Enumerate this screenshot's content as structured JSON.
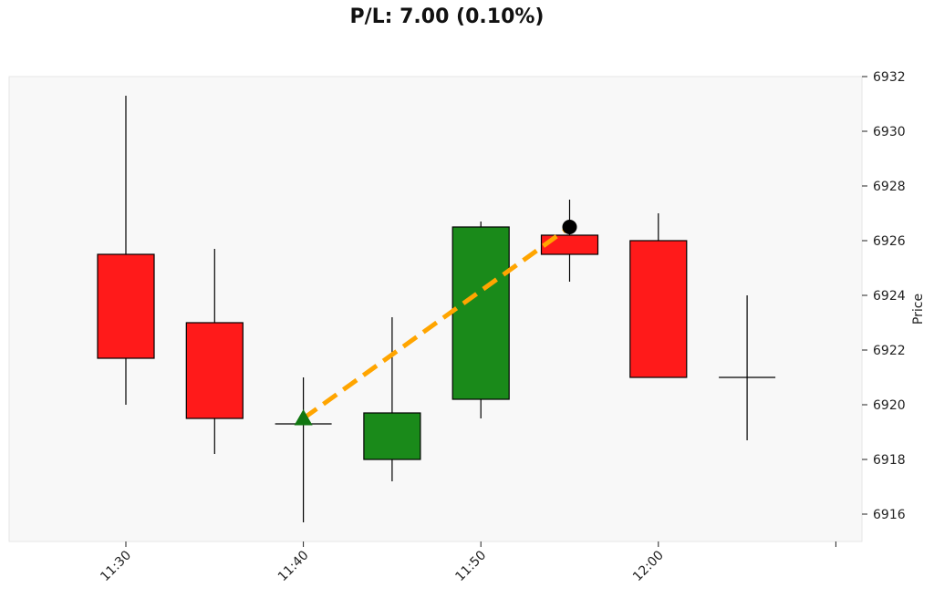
{
  "chart_data": {
    "type": "candlestick",
    "title": "P/L: 7.00 (0.10%)",
    "ylabel": "Price",
    "ylim": [
      6915,
      6932
    ],
    "yticks": [
      6916,
      6918,
      6920,
      6922,
      6924,
      6926,
      6928,
      6930,
      6932
    ],
    "xtick_labels": [
      "11:30",
      "11:40",
      "11:50",
      "12:00"
    ],
    "grid": false,
    "candles": [
      {
        "time": "11:30",
        "open": 6925.5,
        "high": 6931.3,
        "low": 6920.0,
        "close": 6921.7
      },
      {
        "time": "11:35",
        "open": 6923.0,
        "high": 6925.7,
        "low": 6918.2,
        "close": 6919.5
      },
      {
        "time": "11:40",
        "open": 6919.3,
        "high": 6921.0,
        "low": 6915.7,
        "close": 6919.3
      },
      {
        "time": "11:45",
        "open": 6918.0,
        "high": 6923.2,
        "low": 6917.2,
        "close": 6919.7
      },
      {
        "time": "11:50",
        "open": 6920.2,
        "high": 6926.7,
        "low": 6919.5,
        "close": 6926.5
      },
      {
        "time": "11:55",
        "open": 6926.2,
        "high": 6927.5,
        "low": 6924.5,
        "close": 6925.5
      },
      {
        "time": "12:00",
        "open": 6926.0,
        "high": 6927.0,
        "low": 6921.0,
        "close": 6921.0
      },
      {
        "time": "12:05",
        "open": 6921.0,
        "high": 6924.0,
        "low": 6918.7,
        "close": 6921.0
      }
    ],
    "trade": {
      "entry": {
        "time": "11:40",
        "price": 6919.5,
        "marker": "triangle-up",
        "color": "#117711"
      },
      "exit": {
        "time": "11:55",
        "price": 6926.5,
        "marker": "circle",
        "color": "#000000"
      },
      "line_color": "#ffa500",
      "line_style": "dashed"
    },
    "colors": {
      "up": "#1a8a1a",
      "down": "#ff1a1a",
      "background": "#f8f8f8"
    }
  }
}
